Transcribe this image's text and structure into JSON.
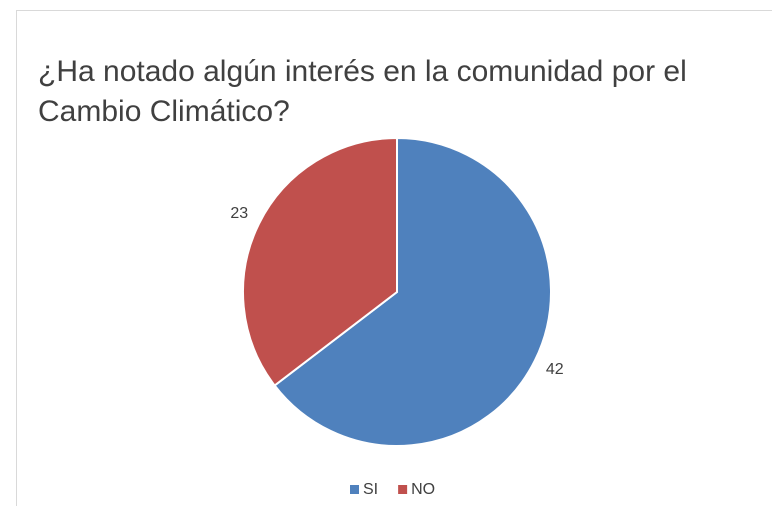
{
  "chart_data": {
    "type": "pie",
    "title": "¿Ha notado algún interés en la comunidad por el Cambio Climático?",
    "categories": [
      "SI",
      "NO"
    ],
    "values": [
      42,
      23
    ],
    "colors": [
      "#4f81bd",
      "#c0504d"
    ],
    "legend": "bottom"
  }
}
